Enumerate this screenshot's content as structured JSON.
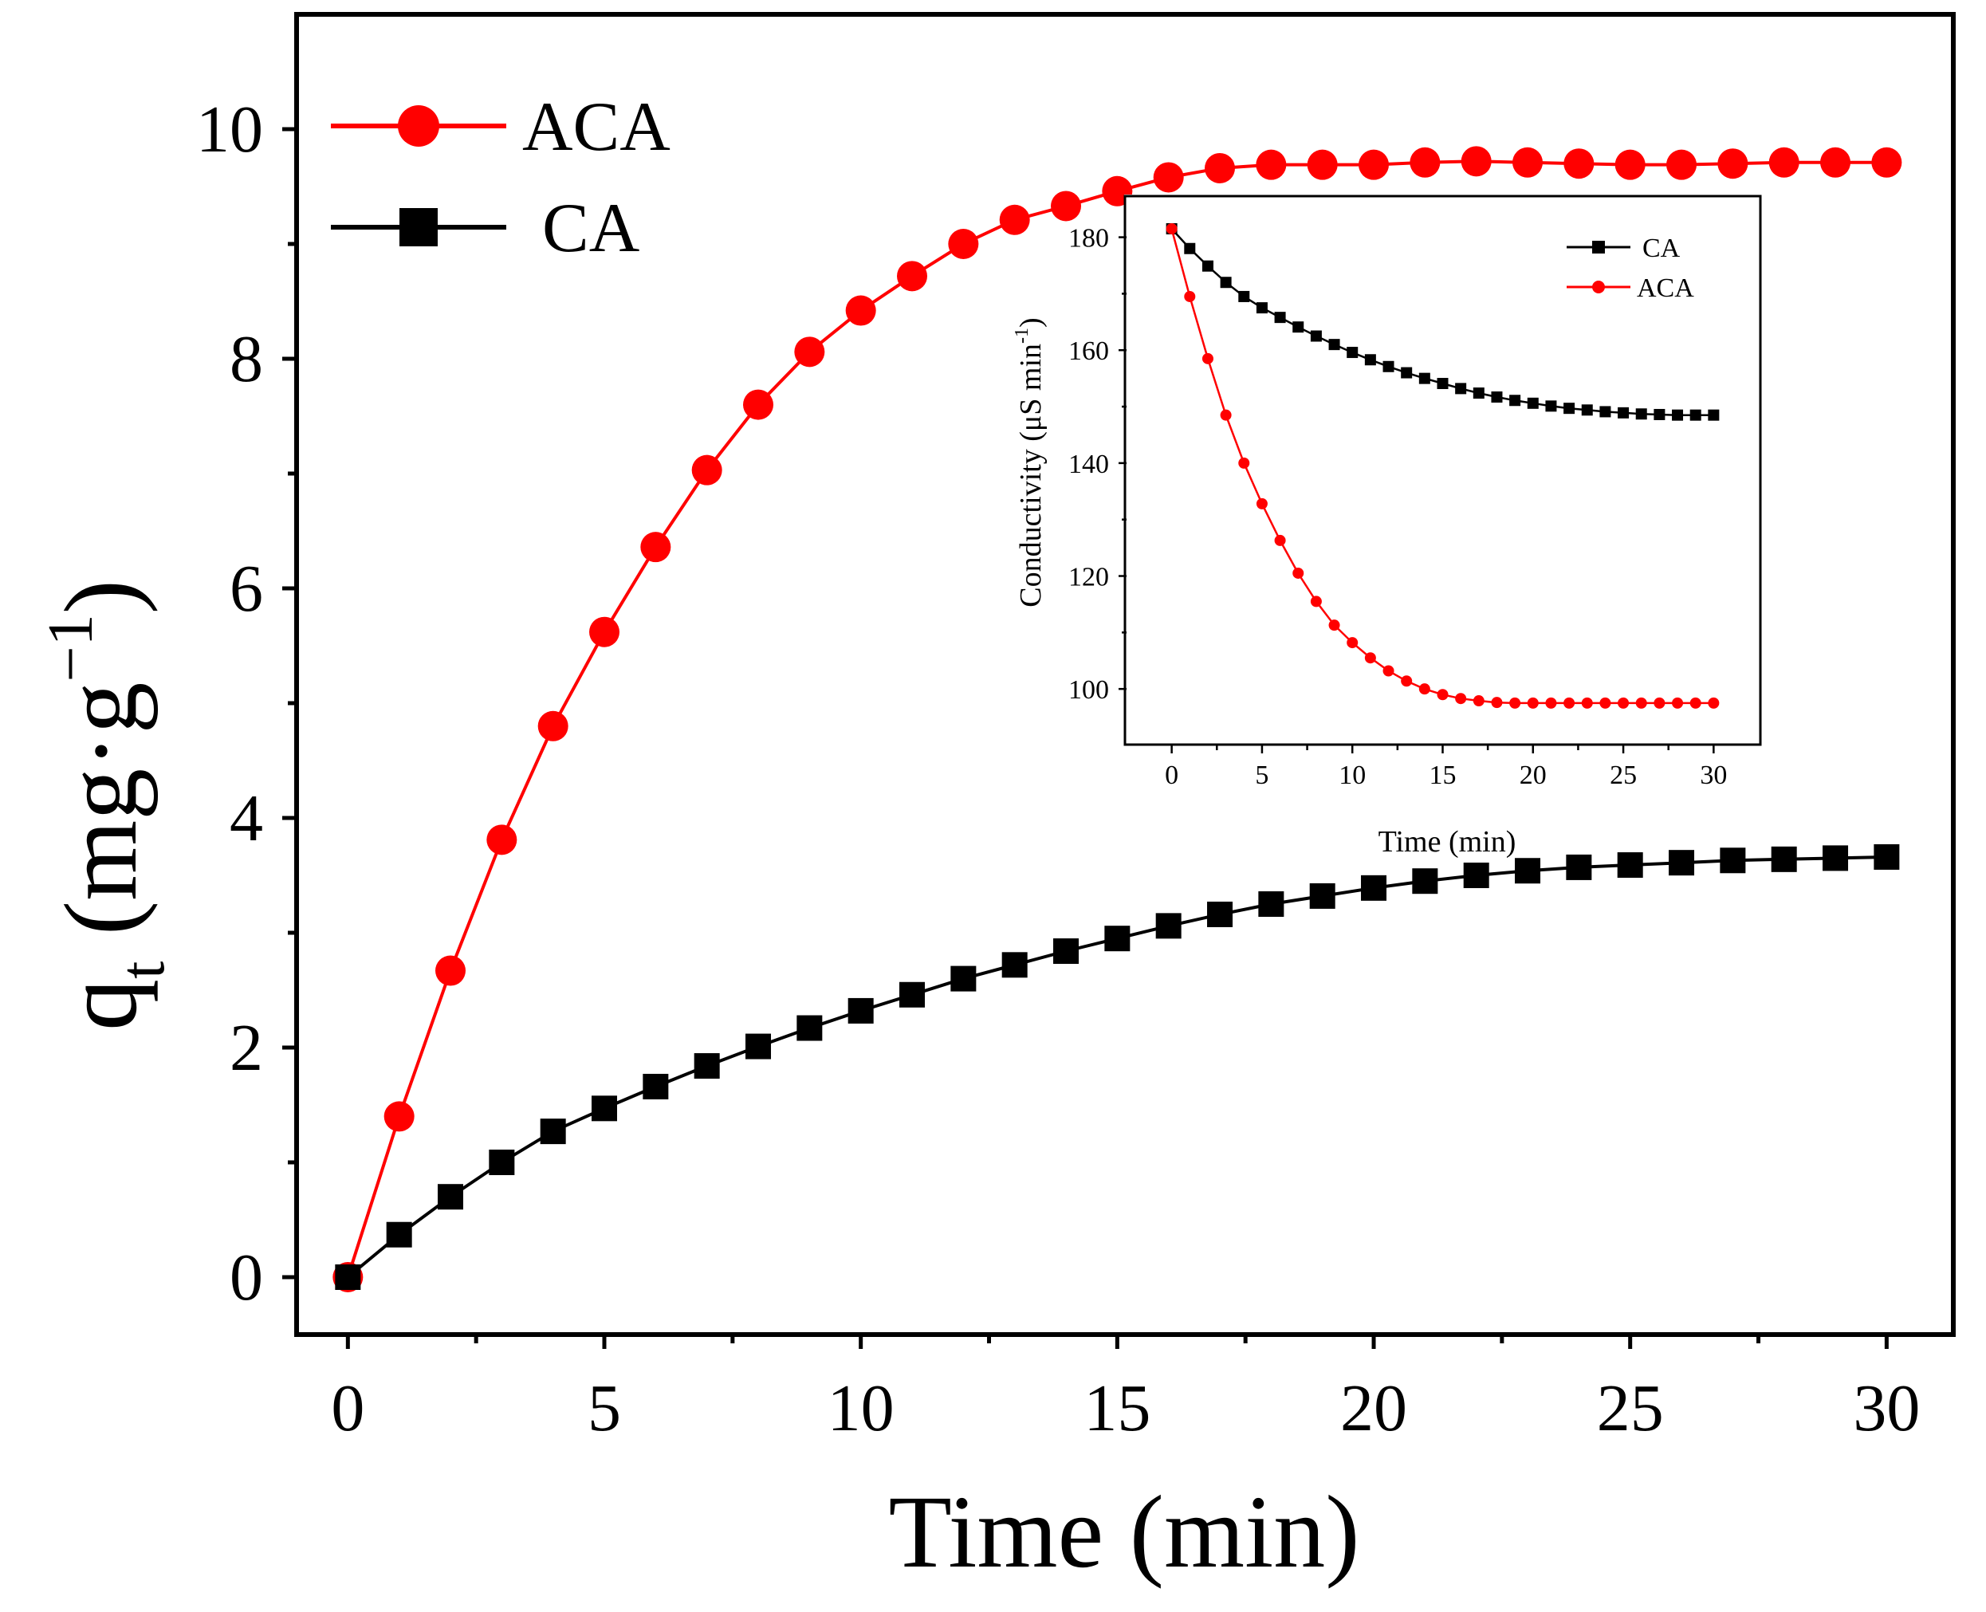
{
  "chart_data": [
    {
      "type": "line",
      "title": "",
      "xlabel": "Time (min)",
      "ylabel_main": "q",
      "ylabel_sub": "t",
      "ylabel_unit": " (mg·g",
      "ylabel_sup": "−1",
      "ylabel_close": ")",
      "xlim": [
        -1,
        31.3
      ],
      "ylim": [
        -0.5,
        11
      ],
      "xticks": [
        0,
        5,
        10,
        15,
        20,
        25,
        30
      ],
      "xtick_labels": [
        "0",
        "5",
        "10",
        "15",
        "20",
        "25",
        "30"
      ],
      "yticks": [
        0,
        2,
        4,
        6,
        8,
        10
      ],
      "ytick_labels": [
        "0",
        "2",
        "4",
        "6",
        "8",
        "10"
      ],
      "legend_position": "top-left",
      "series": [
        {
          "name": "ACA",
          "color": "#ff0000",
          "marker": "circle",
          "x": [
            0,
            1,
            2,
            3,
            4,
            5,
            6,
            7,
            8,
            9,
            10,
            11,
            12,
            13,
            14,
            15,
            16,
            17,
            18,
            19,
            20,
            21,
            22,
            23,
            24,
            25,
            26,
            27,
            28,
            29,
            30
          ],
          "values": [
            0,
            1.4,
            2.67,
            3.81,
            4.8,
            5.62,
            6.36,
            7.03,
            7.6,
            8.06,
            8.42,
            8.72,
            9.0,
            9.21,
            9.33,
            9.46,
            9.58,
            9.66,
            9.69,
            9.69,
            9.69,
            9.71,
            9.72,
            9.71,
            9.7,
            9.69,
            9.69,
            9.7,
            9.71,
            9.71,
            9.71
          ]
        },
        {
          "name": "CA",
          "color": "#000000",
          "marker": "square",
          "x": [
            0,
            1,
            2,
            3,
            4,
            5,
            6,
            7,
            8,
            9,
            10,
            11,
            12,
            13,
            14,
            15,
            16,
            17,
            18,
            19,
            20,
            21,
            22,
            23,
            24,
            25,
            26,
            27,
            28,
            29,
            30
          ],
          "values": [
            0,
            0.37,
            0.7,
            1.0,
            1.27,
            1.47,
            1.66,
            1.84,
            2.01,
            2.17,
            2.32,
            2.46,
            2.6,
            2.72,
            2.84,
            2.95,
            3.06,
            3.16,
            3.25,
            3.32,
            3.39,
            3.45,
            3.5,
            3.54,
            3.57,
            3.59,
            3.61,
            3.63,
            3.64,
            3.65,
            3.66
          ]
        }
      ]
    },
    {
      "type": "line",
      "title": "",
      "xlabel": "Time (min)",
      "ylabel_main": "Conductivity (μS min",
      "ylabel_sup": "-1",
      "ylabel_close": ")",
      "xlim": [
        -2.5,
        32.5
      ],
      "ylim": [
        90,
        187
      ],
      "xticks": [
        0,
        5,
        10,
        15,
        20,
        25,
        30
      ],
      "xtick_labels": [
        "0",
        "5",
        "10",
        "15",
        "20",
        "25",
        "30"
      ],
      "yticks": [
        100,
        120,
        140,
        160,
        180
      ],
      "ytick_labels": [
        "100",
        "120",
        "140",
        "160",
        "180"
      ],
      "legend_position": "top-right",
      "series": [
        {
          "name": "CA",
          "color": "#000000",
          "marker": "square",
          "x": [
            0,
            1,
            2,
            3,
            4,
            5,
            6,
            7,
            8,
            9,
            10,
            11,
            12,
            13,
            14,
            15,
            16,
            17,
            18,
            19,
            20,
            21,
            22,
            23,
            24,
            25,
            26,
            27,
            28,
            29,
            30
          ],
          "values": [
            181.5,
            178.0,
            174.9,
            172.0,
            169.5,
            167.5,
            165.8,
            164.1,
            162.5,
            161.0,
            159.6,
            158.3,
            157.1,
            156.0,
            155.0,
            154.1,
            153.2,
            152.4,
            151.7,
            151.1,
            150.6,
            150.1,
            149.7,
            149.4,
            149.1,
            148.9,
            148.7,
            148.6,
            148.5,
            148.5,
            148.5
          ]
        },
        {
          "name": "ACA",
          "color": "#ff0000",
          "marker": "circle",
          "x": [
            0,
            1,
            2,
            3,
            4,
            5,
            6,
            7,
            8,
            9,
            10,
            11,
            12,
            13,
            14,
            15,
            16,
            17,
            18,
            19,
            20,
            21,
            22,
            23,
            24,
            25,
            26,
            27,
            28,
            29,
            30
          ],
          "values": [
            181.5,
            169.5,
            158.5,
            148.5,
            140.0,
            132.8,
            126.3,
            120.5,
            115.5,
            111.3,
            108.2,
            105.5,
            103.2,
            101.4,
            100.0,
            99.0,
            98.3,
            97.9,
            97.6,
            97.5,
            97.5,
            97.5,
            97.5,
            97.5,
            97.5,
            97.5,
            97.5,
            97.5,
            97.5,
            97.5,
            97.5
          ]
        }
      ]
    }
  ]
}
